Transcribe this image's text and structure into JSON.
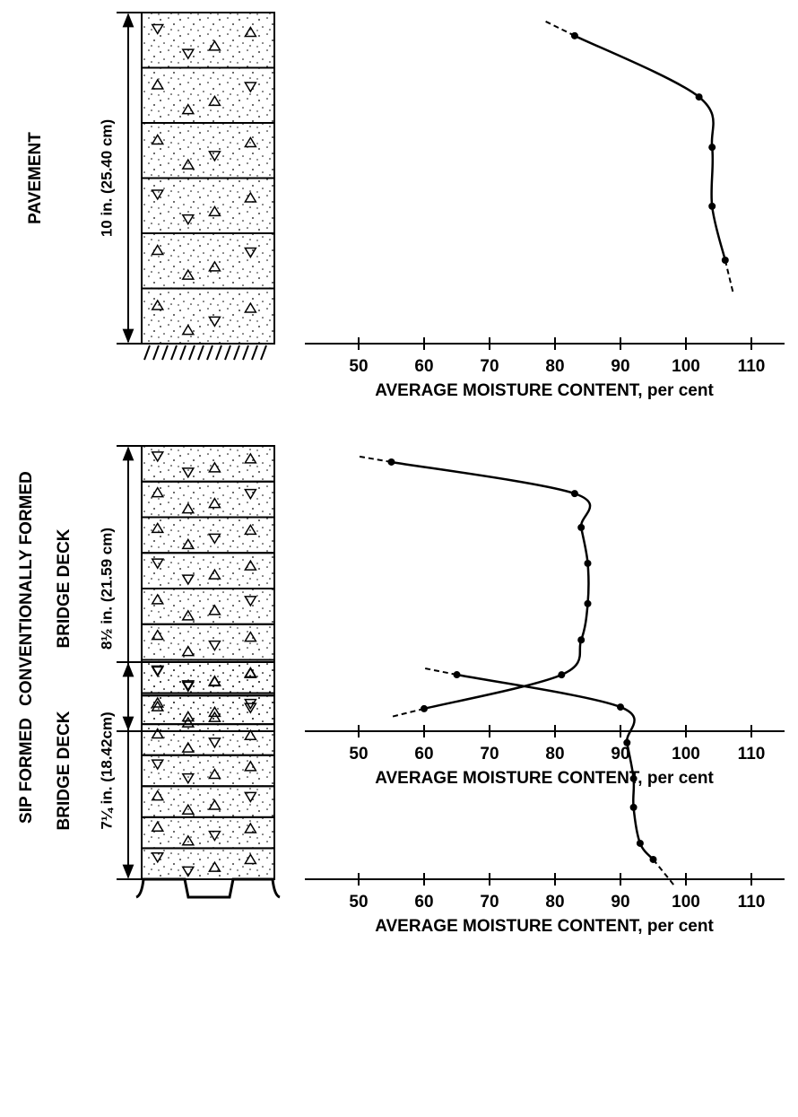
{
  "chart_data": [
    {
      "type": "line",
      "title": [
        "PAVEMENT"
      ],
      "thickness_label": "10 in. (25.40 cm)",
      "x_label": "AVERAGE MOISTURE CONTENT, per cent",
      "x": [
        83,
        102,
        104,
        104,
        106
      ],
      "y": [
        0.7,
        2.55,
        4.07,
        5.85,
        7.48
      ],
      "xlim": [
        45,
        115
      ],
      "ylim": [
        0,
        10
      ],
      "xticks": [
        50,
        60,
        70,
        80,
        90,
        100,
        110
      ],
      "color": "#000000"
    },
    {
      "type": "line",
      "title": [
        "CONVENTIONALLY FORMED",
        "BRIDGE DECK"
      ],
      "thickness_label": "8½ in. (21.59 cm)",
      "x_label": "AVERAGE MOISTURE CONTENT, per cent",
      "x": [
        55,
        83,
        84,
        85,
        85,
        84,
        81,
        60
      ],
      "y": [
        0.48,
        1.42,
        2.43,
        3.5,
        4.7,
        5.78,
        6.82,
        7.83
      ],
      "xlim": [
        45,
        115
      ],
      "ylim": [
        0,
        8.5
      ],
      "xticks": [
        50,
        60,
        70,
        80,
        90,
        100,
        110
      ],
      "color": "#000000"
    },
    {
      "type": "line",
      "title": [
        "SIP FORMED",
        "BRIDGE DECK"
      ],
      "thickness_label": "7¼ in. (18.42cm)",
      "x_label": "AVERAGE MOISTURE CONTENT, per cent",
      "x": [
        65,
        90,
        91,
        92,
        92,
        93,
        95
      ],
      "y": [
        0.42,
        1.5,
        2.69,
        3.89,
        4.85,
        6.05,
        6.59
      ],
      "xlim": [
        45,
        115
      ],
      "ylim": [
        0,
        7.25
      ],
      "xticks": [
        50,
        60,
        70,
        80,
        90,
        100,
        110
      ],
      "color": "#000000"
    }
  ]
}
